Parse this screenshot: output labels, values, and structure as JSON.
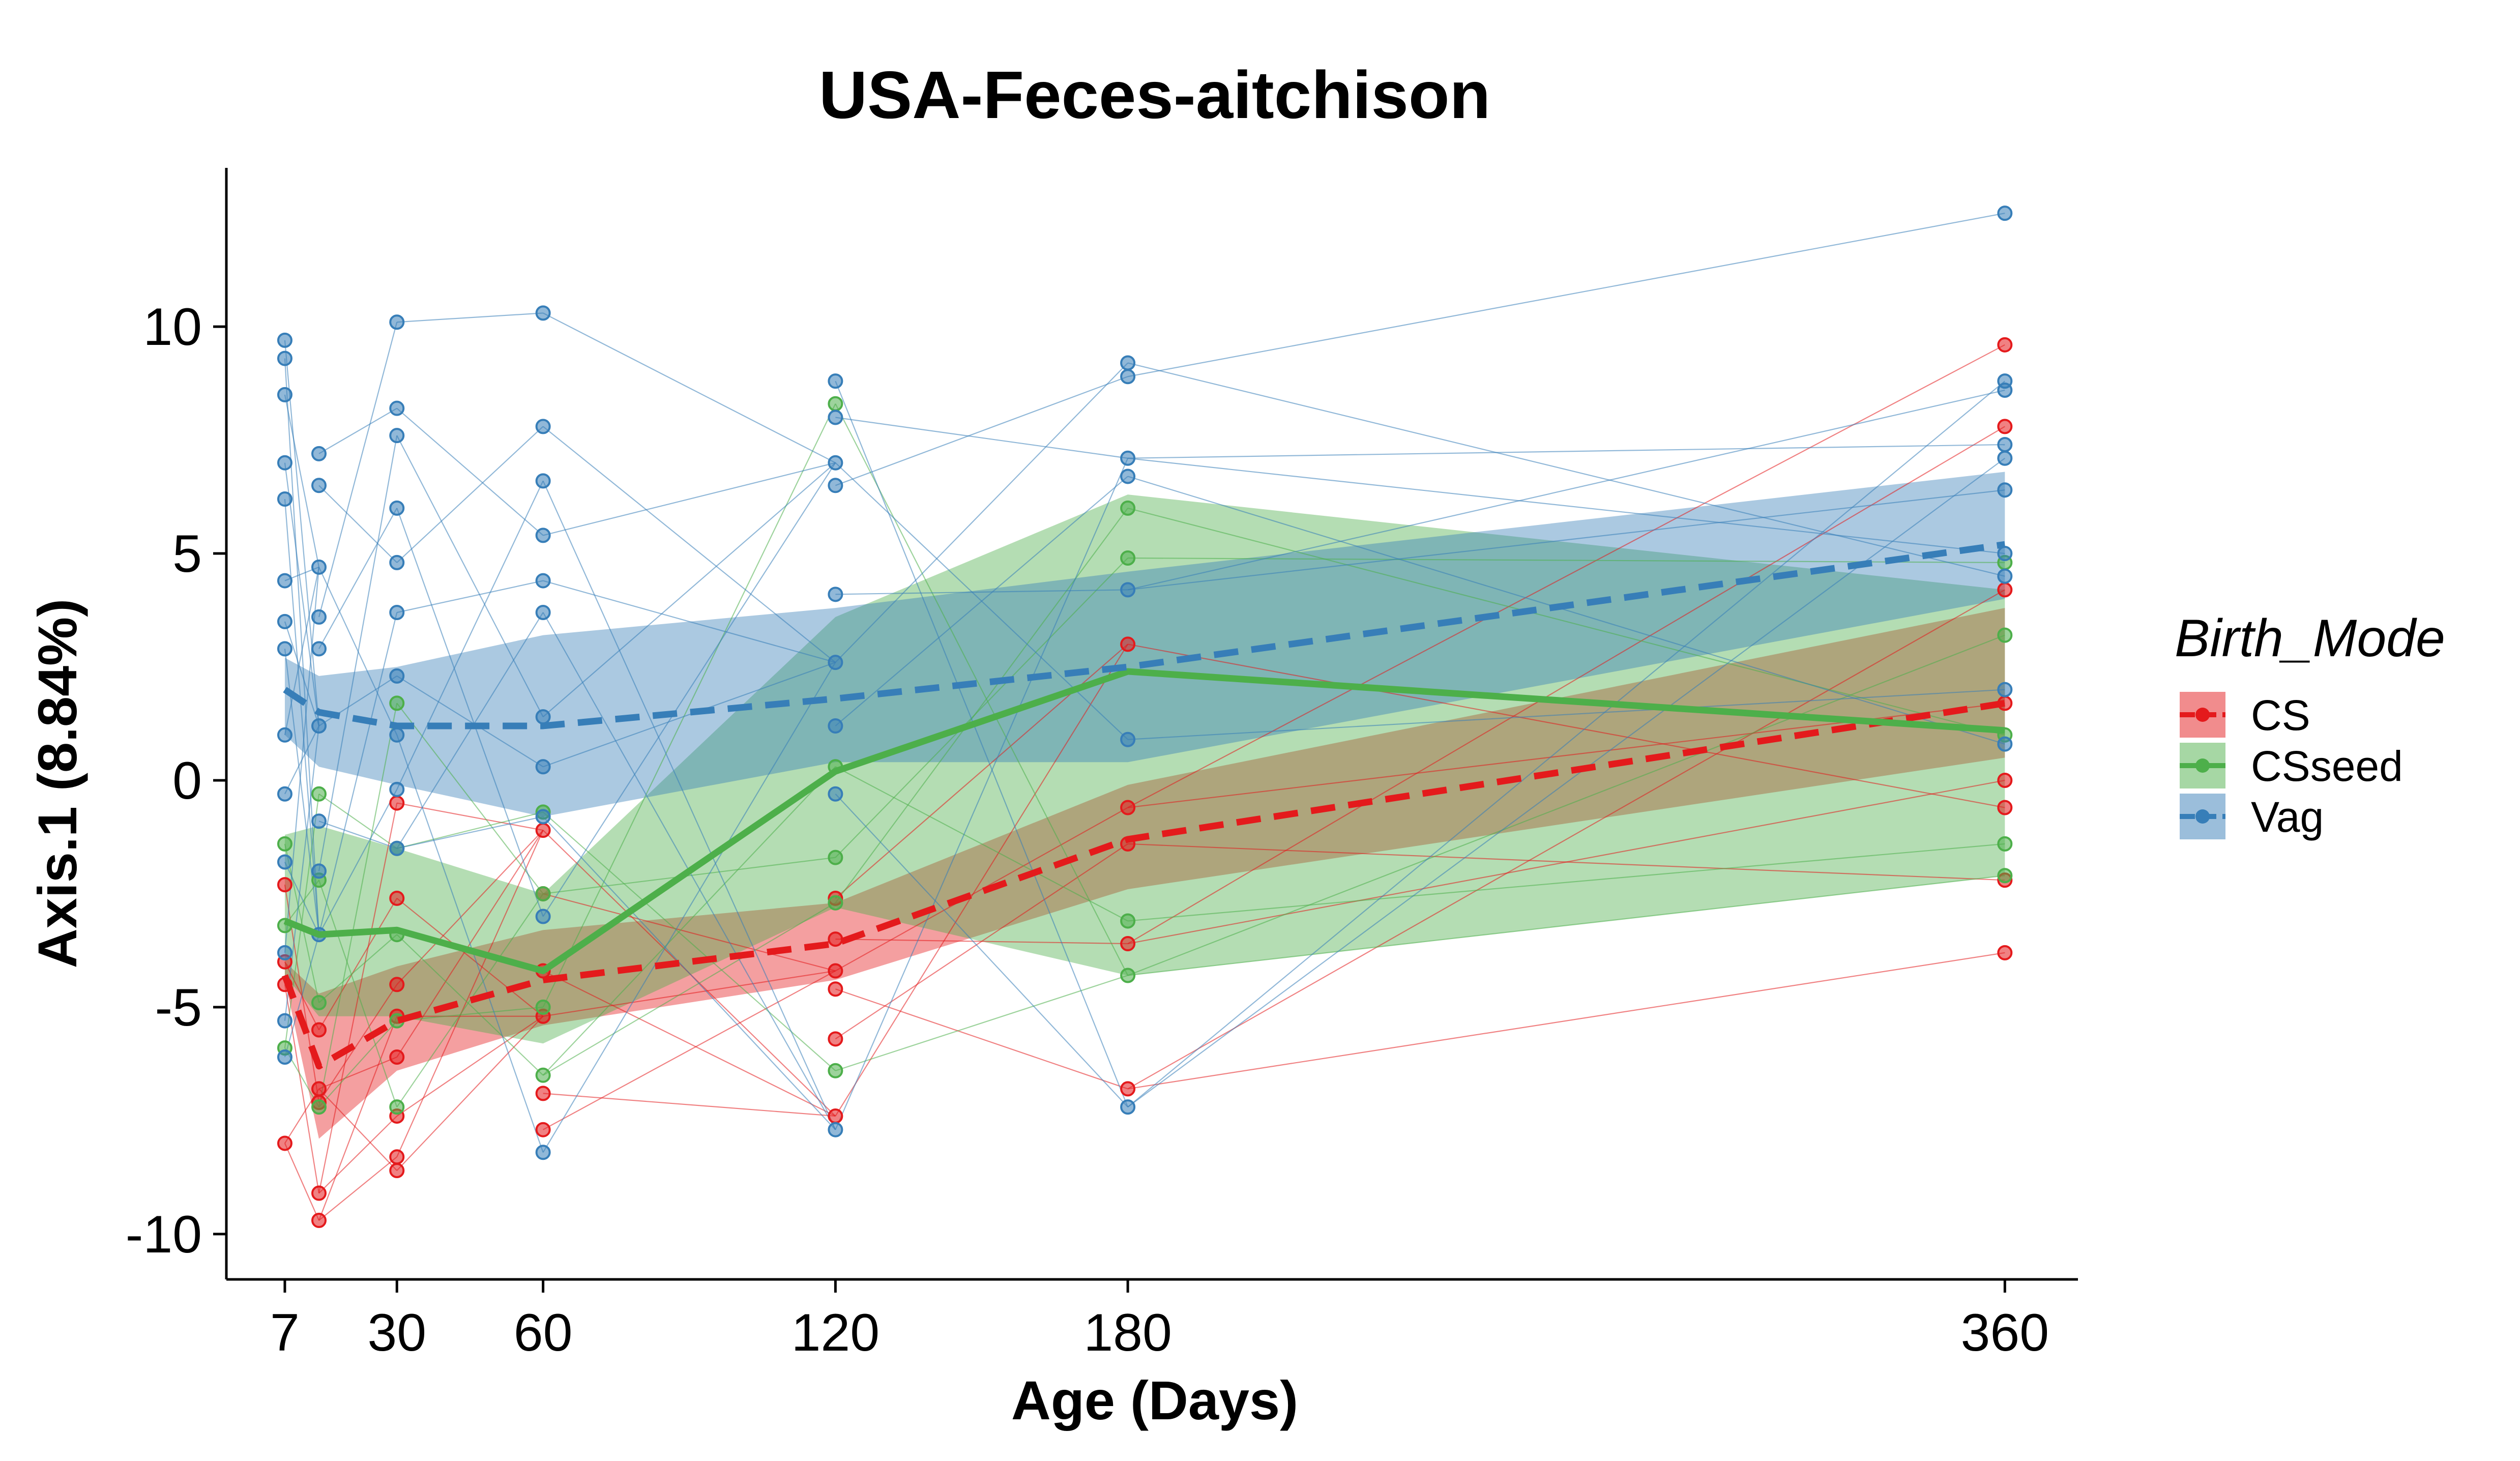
{
  "chart_data": {
    "type": "line",
    "title": "USA-Feces-aitchison",
    "xlabel": "Age (Days)",
    "ylabel": "Axis.1 (8.84%)",
    "xlim": [
      -5,
      375
    ],
    "ylim": [
      -11,
      13.5
    ],
    "x_ticks": [
      7,
      30,
      60,
      120,
      180,
      360
    ],
    "x_tick_labels": [
      "7",
      "30",
      "60",
      "120",
      "180",
      "360"
    ],
    "y_ticks": [
      -10,
      -5,
      0,
      5,
      10
    ],
    "y_tick_labels": [
      "-10",
      "-5",
      "0",
      "5",
      "10"
    ],
    "grid": false,
    "legend": {
      "title": "Birth_Mode",
      "position": "right",
      "entries": [
        "CS",
        "CSseed",
        "Vag"
      ]
    },
    "series": [
      {
        "name": "CS",
        "color": "#E41A1C",
        "line_style": "dashed",
        "x": [
          7,
          14,
          30,
          60,
          120,
          180,
          360
        ],
        "mean": [
          -4.3,
          -6.3,
          -5.3,
          -4.4,
          -3.6,
          -1.3,
          1.7
        ],
        "ci_lower": [
          -4.4,
          -7.9,
          -6.4,
          -5.4,
          -4.4,
          -2.4,
          0.5
        ],
        "ci_upper": [
          -4.0,
          -4.7,
          -4.1,
          -3.3,
          -2.7,
          -0.1,
          3.8
        ],
        "points": [
          [
            7,
            -8.0
          ],
          [
            7,
            -4.0
          ],
          [
            7,
            -4.5
          ],
          [
            7,
            -2.3
          ],
          [
            14,
            -9.7
          ],
          [
            14,
            -9.1
          ],
          [
            14,
            -6.8
          ],
          [
            14,
            -7.1
          ],
          [
            14,
            -5.5
          ],
          [
            30,
            -8.6
          ],
          [
            30,
            -8.3
          ],
          [
            30,
            -7.4
          ],
          [
            30,
            -6.1
          ],
          [
            30,
            -5.2
          ],
          [
            30,
            -4.5
          ],
          [
            30,
            -2.6
          ],
          [
            30,
            -0.5
          ],
          [
            60,
            -7.7
          ],
          [
            60,
            -6.9
          ],
          [
            60,
            -5.2
          ],
          [
            60,
            -4.2
          ],
          [
            60,
            -2.5
          ],
          [
            60,
            -1.1
          ],
          [
            120,
            -7.4
          ],
          [
            120,
            -5.7
          ],
          [
            120,
            -4.6
          ],
          [
            120,
            -4.2
          ],
          [
            120,
            -3.5
          ],
          [
            120,
            -2.6
          ],
          [
            180,
            -6.8
          ],
          [
            180,
            -3.6
          ],
          [
            180,
            -1.4
          ],
          [
            180,
            -0.6
          ],
          [
            180,
            3.0
          ],
          [
            360,
            -3.8
          ],
          [
            360,
            -2.2
          ],
          [
            360,
            -0.6
          ],
          [
            360,
            0.0
          ],
          [
            360,
            1.7
          ],
          [
            360,
            4.2
          ],
          [
            360,
            7.8
          ],
          [
            360,
            9.6
          ]
        ]
      },
      {
        "name": "CSseed",
        "color": "#4DAF4A",
        "line_style": "solid",
        "x": [
          7,
          14,
          30,
          60,
          120,
          180,
          360
        ],
        "mean": [
          -3.1,
          -3.4,
          -3.3,
          -4.2,
          0.2,
          2.4,
          1.1
        ],
        "ci_lower": [
          -4.3,
          -5.2,
          -5.2,
          -5.8,
          -2.8,
          -4.3,
          -2.1
        ],
        "ci_upper": [
          -1.2,
          -1.0,
          -1.5,
          -2.5,
          3.6,
          6.3,
          4.2
        ],
        "points": [
          [
            7,
            -5.9
          ],
          [
            7,
            -3.2
          ],
          [
            7,
            -1.4
          ],
          [
            14,
            -7.2
          ],
          [
            14,
            -4.9
          ],
          [
            14,
            -2.2
          ],
          [
            14,
            -0.3
          ],
          [
            30,
            -7.2
          ],
          [
            30,
            -5.3
          ],
          [
            30,
            -3.4
          ],
          [
            30,
            -1.5
          ],
          [
            30,
            1.7
          ],
          [
            60,
            -6.5
          ],
          [
            60,
            -5.0
          ],
          [
            60,
            -2.5
          ],
          [
            60,
            -0.7
          ],
          [
            120,
            -6.4
          ],
          [
            120,
            -2.7
          ],
          [
            120,
            -1.7
          ],
          [
            120,
            0.3
          ],
          [
            120,
            8.3
          ],
          [
            180,
            -4.3
          ],
          [
            180,
            -3.1
          ],
          [
            180,
            4.9
          ],
          [
            180,
            6.0
          ],
          [
            360,
            -2.1
          ],
          [
            360,
            -1.4
          ],
          [
            360,
            1.0
          ],
          [
            360,
            3.2
          ],
          [
            360,
            4.8
          ]
        ]
      },
      {
        "name": "Vag",
        "color": "#377EB8",
        "line_style": "dashed",
        "x": [
          7,
          14,
          30,
          60,
          120,
          180,
          360
        ],
        "mean": [
          2.0,
          1.5,
          1.2,
          1.2,
          1.8,
          2.5,
          5.2
        ],
        "ci_lower": [
          1.0,
          0.3,
          -0.1,
          -0.8,
          0.4,
          0.4,
          4.0
        ],
        "ci_upper": [
          2.7,
          2.3,
          2.5,
          3.2,
          3.8,
          4.6,
          6.8
        ],
        "points": [
          [
            7,
            9.7
          ],
          [
            7,
            9.3
          ],
          [
            7,
            8.5
          ],
          [
            7,
            7.0
          ],
          [
            7,
            6.2
          ],
          [
            7,
            4.4
          ],
          [
            7,
            3.5
          ],
          [
            7,
            2.9
          ],
          [
            7,
            1.0
          ],
          [
            7,
            -0.3
          ],
          [
            7,
            -1.8
          ],
          [
            7,
            -3.8
          ],
          [
            7,
            -5.3
          ],
          [
            7,
            -6.1
          ],
          [
            14,
            7.2
          ],
          [
            14,
            6.5
          ],
          [
            14,
            4.7
          ],
          [
            14,
            3.6
          ],
          [
            14,
            2.9
          ],
          [
            14,
            1.2
          ],
          [
            14,
            -0.9
          ],
          [
            14,
            -2.0
          ],
          [
            14,
            -3.4
          ],
          [
            30,
            10.1
          ],
          [
            30,
            8.2
          ],
          [
            30,
            7.6
          ],
          [
            30,
            6.0
          ],
          [
            30,
            4.8
          ],
          [
            30,
            3.7
          ],
          [
            30,
            2.3
          ],
          [
            30,
            1.0
          ],
          [
            30,
            -0.2
          ],
          [
            30,
            -1.5
          ],
          [
            60,
            10.3
          ],
          [
            60,
            7.8
          ],
          [
            60,
            6.6
          ],
          [
            60,
            5.4
          ],
          [
            60,
            4.4
          ],
          [
            60,
            3.7
          ],
          [
            60,
            1.4
          ],
          [
            60,
            0.3
          ],
          [
            60,
            -0.8
          ],
          [
            60,
            -3.0
          ],
          [
            60,
            -8.2
          ],
          [
            120,
            8.8
          ],
          [
            120,
            8.0
          ],
          [
            120,
            7.0
          ],
          [
            120,
            6.5
          ],
          [
            120,
            4.1
          ],
          [
            120,
            2.6
          ],
          [
            120,
            1.2
          ],
          [
            120,
            -0.3
          ],
          [
            120,
            -7.7
          ],
          [
            180,
            9.2
          ],
          [
            180,
            8.9
          ],
          [
            180,
            7.1
          ],
          [
            180,
            6.7
          ],
          [
            180,
            4.2
          ],
          [
            180,
            0.9
          ],
          [
            180,
            -7.2
          ],
          [
            360,
            12.5
          ],
          [
            360,
            8.8
          ],
          [
            360,
            8.6
          ],
          [
            360,
            7.4
          ],
          [
            360,
            7.1
          ],
          [
            360,
            6.4
          ],
          [
            360,
            5.0
          ],
          [
            360,
            4.5
          ],
          [
            360,
            2.0
          ],
          [
            360,
            0.8
          ]
        ]
      }
    ]
  }
}
